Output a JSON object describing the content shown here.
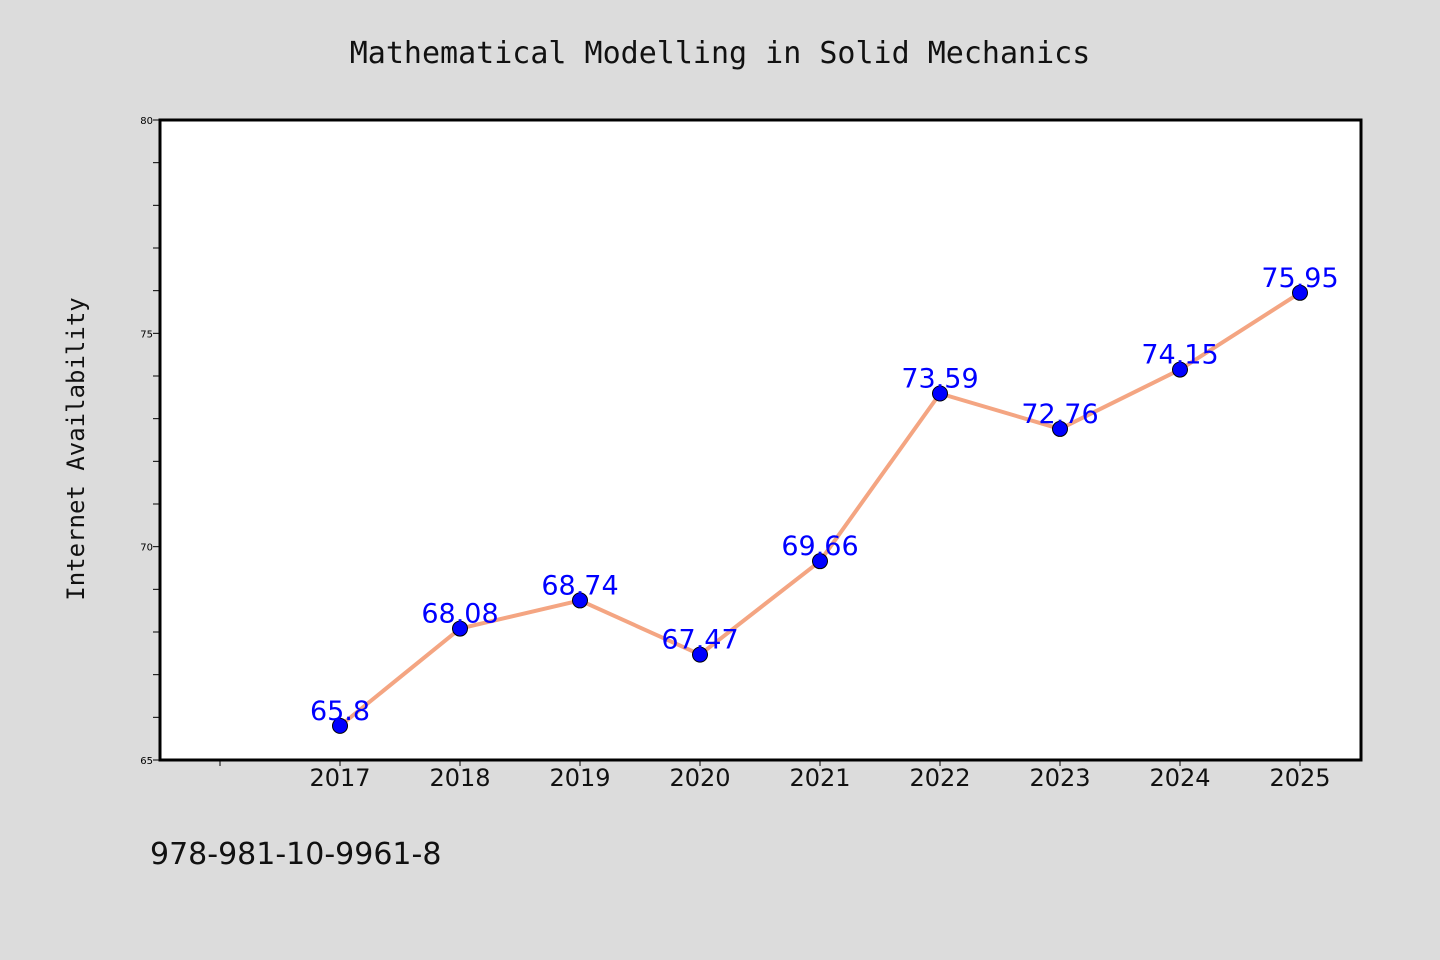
{
  "chart_data": {
    "type": "line",
    "title": "Mathematical Modelling in Solid Mechanics",
    "xlabel": "",
    "ylabel": "Internet Availability",
    "categories": [
      "2017",
      "2018",
      "2019",
      "2020",
      "2021",
      "2022",
      "2023",
      "2024",
      "2025"
    ],
    "series": [
      {
        "values": [
          65.8,
          68.08,
          68.74,
          67.47,
          69.66,
          73.59,
          72.76,
          74.15,
          75.95
        ],
        "labels": [
          "65.8",
          "68.08",
          "68.74",
          "67.47",
          "69.66",
          "73.59",
          "72.76",
          "74.15",
          "75.95"
        ],
        "line_color": "#f4a582",
        "marker_color": "#0000ff"
      }
    ],
    "ylim": [
      65,
      80
    ],
    "yticks": [
      "65",
      "70",
      "75",
      "80"
    ],
    "grid": false,
    "legend": "none",
    "label_color": "#0000ff"
  },
  "footer": {
    "isbn": "978-981-10-9961-8"
  }
}
